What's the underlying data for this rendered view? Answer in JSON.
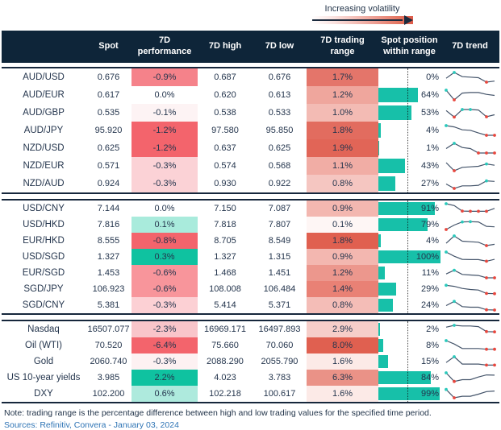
{
  "legend": {
    "label": "Increasing volatility"
  },
  "note": "Note: trading range is the percentage difference between high and low trading values for the specified time period.",
  "sources": "Sources: Refinitiv, Convera - January 03, 2024",
  "colors": {
    "header_bg": "#0E2539",
    "bar_teal": "#17C0A9",
    "positive_teal": "#0FC2A0",
    "heatmap_max_red": "#E05F4E",
    "spark_line": "#44546A",
    "spark_max_dot": "#2BC9BC",
    "spark_min_dot": "#E8473E",
    "text_navy": "#24354D",
    "sources_blue": "#2E74B5",
    "divider": "#16273C"
  },
  "chart_data": {
    "type": "table",
    "title": "",
    "columns": [
      "",
      "Spot",
      "7D performance",
      "7D high",
      "7D low",
      "7D trading range",
      "Spot position within range",
      "7D trend"
    ],
    "groups": [
      {
        "rows": [
          {
            "label": "AUD/USD",
            "spot": "0.676",
            "perf": "-0.9%",
            "perf_bg": "#F5828A",
            "high": "0.687",
            "low": "0.676",
            "range": "1.7%",
            "range_bg": "#E4756A",
            "position": "0%",
            "spark": {
              "points": [
                0.45,
                1.0,
                0.6,
                0.55,
                0.5,
                0.08,
                0.18
              ],
              "max": [
                1
              ],
              "min": [
                5
              ]
            }
          },
          {
            "label": "AUD/EUR",
            "spot": "0.617",
            "perf": "0.0%",
            "perf_bg": "#FFFFFF",
            "high": "0.620",
            "low": "0.613",
            "range": "1.2%",
            "range_bg": "#EFA69D",
            "position": "64%",
            "spark": {
              "points": [
                1.0,
                0.08,
                0.72,
                0.78,
                0.78,
                0.6,
                0.5
              ],
              "max": [
                0
              ],
              "min": [
                1
              ]
            }
          },
          {
            "label": "AUD/GBP",
            "spot": "0.535",
            "perf": "-0.1%",
            "perf_bg": "#FDF3F4",
            "high": "0.538",
            "low": "0.533",
            "range": "1.0%",
            "range_bg": "#F3BBB4",
            "position": "53%",
            "spark": {
              "points": [
                0.75,
                0.12,
                0.85,
                0.85,
                0.8,
                0.15,
                0.35
              ],
              "max": [
                2,
                3
              ],
              "min": [
                1,
                5
              ]
            }
          },
          {
            "label": "AUD/JPY",
            "spot": "95.920",
            "perf": "-1.2%",
            "perf_bg": "#F3646C",
            "high": "97.580",
            "low": "95.850",
            "range": "1.8%",
            "range_bg": "#E26C5F",
            "position": "4%",
            "spark": {
              "points": [
                1.0,
                0.88,
                0.6,
                0.55,
                0.3,
                0.08,
                0.08
              ],
              "max": [
                0
              ],
              "min": [
                5,
                6
              ]
            }
          },
          {
            "label": "NZD/USD",
            "spot": "0.625",
            "perf": "-1.2%",
            "perf_bg": "#F3646C",
            "high": "0.637",
            "low": "0.625",
            "range": "1.9%",
            "range_bg": "#E16557",
            "position": "1%",
            "spark": {
              "points": [
                0.5,
                1.0,
                0.6,
                0.5,
                0.08,
                0.08,
                0.08
              ],
              "max": [
                1
              ],
              "min": [
                4,
                5,
                6
              ]
            }
          },
          {
            "label": "NZD/EUR",
            "spot": "0.571",
            "perf": "-0.3%",
            "perf_bg": "#FBD2D6",
            "high": "0.574",
            "low": "0.568",
            "range": "1.1%",
            "range_bg": "#F1ADA5",
            "position": "43%",
            "spark": {
              "points": [
                0.85,
                0.08,
                0.4,
                0.45,
                0.5,
                0.72,
                0.6
              ],
              "max": [
                5
              ],
              "min": [
                1
              ]
            }
          },
          {
            "label": "NZD/AUD",
            "spot": "0.924",
            "perf": "-0.3%",
            "perf_bg": "#FBD2D6",
            "high": "0.930",
            "low": "0.922",
            "range": "0.8%",
            "range_bg": "#F5C6C1",
            "position": "27%",
            "spark": {
              "points": [
                0.5,
                0.08,
                0.32,
                0.32,
                0.38,
                0.8,
                0.75
              ],
              "max": [
                5
              ],
              "min": [
                1
              ]
            }
          }
        ]
      },
      {
        "rows": [
          {
            "label": "USD/CNY",
            "spot": "7.144",
            "perf": "0.0%",
            "perf_bg": "#FFFFFF",
            "high": "7.150",
            "low": "7.087",
            "range": "0.9%",
            "range_bg": "#F3B7B0",
            "position": "91%",
            "spark": {
              "points": [
                1.0,
                0.82,
                0.3,
                0.28,
                0.28,
                0.28,
                0.55
              ],
              "max": [
                0
              ],
              "min": [
                2,
                3,
                4,
                5
              ]
            }
          },
          {
            "label": "USD/HKD",
            "spot": "7.816",
            "perf": "0.1%",
            "perf_bg": "#A9EBDC",
            "high": "7.818",
            "low": "7.807",
            "range": "0.1%",
            "range_bg": "#FEF6F5",
            "position": "79%",
            "spark": {
              "points": [
                0.08,
                0.5,
                0.8,
                0.82,
                0.8,
                0.38,
                0.33
              ],
              "max": [
                2,
                3
              ],
              "min": [
                0
              ]
            }
          },
          {
            "label": "EUR/HKD",
            "spot": "8.555",
            "perf": "-0.8%",
            "perf_bg": "#F3646C",
            "high": "8.705",
            "low": "8.549",
            "range": "1.8%",
            "range_bg": "#E06050",
            "position": "4%",
            "spark": {
              "points": [
                0.3,
                1.0,
                0.5,
                0.45,
                0.4,
                0.08,
                0.2
              ],
              "max": [
                1
              ],
              "min": [
                5
              ]
            }
          },
          {
            "label": "USD/SGD",
            "spot": "1.327",
            "perf": "0.3%",
            "perf_bg": "#0FC2A0",
            "high": "1.327",
            "low": "1.315",
            "range": "0.9%",
            "range_bg": "#F3B7B0",
            "position": "100%",
            "spark": {
              "points": [
                1.0,
                0.6,
                0.3,
                0.28,
                0.28,
                0.12,
                0.3
              ],
              "max": [
                0
              ],
              "min": [
                5
              ]
            }
          },
          {
            "label": "EUR/SGD",
            "spot": "1.453",
            "perf": "-0.6%",
            "perf_bg": "#F8959B",
            "high": "1.468",
            "low": "1.451",
            "range": "1.2%",
            "range_bg": "#EC978D",
            "position": "11%",
            "spark": {
              "points": [
                0.45,
                0.8,
                0.4,
                0.35,
                0.3,
                0.08,
                0.08
              ],
              "max": [
                1
              ],
              "min": [
                5,
                6
              ]
            }
          },
          {
            "label": "SGD/JPY",
            "spot": "106.923",
            "perf": "-0.6%",
            "perf_bg": "#F8959B",
            "high": "108.008",
            "low": "106.484",
            "range": "1.4%",
            "range_bg": "#E98175",
            "position": "29%",
            "spark": {
              "points": [
                0.9,
                0.8,
                0.6,
                0.5,
                0.45,
                0.12,
                0.1
              ],
              "max": [
                0
              ],
              "min": [
                5,
                6
              ]
            }
          },
          {
            "label": "SGD/CNY",
            "spot": "5.381",
            "perf": "-0.3%",
            "perf_bg": "#FCD0D4",
            "high": "5.414",
            "low": "5.371",
            "range": "0.8%",
            "range_bg": "#F4BDB7",
            "position": "24%",
            "spark": {
              "points": [
                0.5,
                0.9,
                0.4,
                0.35,
                0.35,
                0.1,
                0.08
              ],
              "max": [
                1
              ],
              "min": [
                5,
                6
              ]
            }
          }
        ]
      },
      {
        "rows": [
          {
            "label": "Nasdaq",
            "spot": "16507.077",
            "perf": "-2.3%",
            "perf_bg": "#F9C5CA",
            "high": "16969.171",
            "low": "16497.893",
            "range": "2.9%",
            "range_bg": "#F6CEC9",
            "position": "2%",
            "spark": {
              "points": [
                0.75,
                0.92,
                0.86,
                0.86,
                0.8,
                0.32,
                0.3
              ],
              "max": [
                1
              ],
              "min": [
                5,
                6
              ]
            }
          },
          {
            "label": "Oil (WTI)",
            "spot": "70.520",
            "perf": "-6.4%",
            "perf_bg": "#F3646C",
            "high": "75.660",
            "low": "70.060",
            "range": "8.0%",
            "range_bg": "#E06050",
            "position": "8%",
            "spark": {
              "points": [
                1.0,
                0.68,
                0.25,
                0.25,
                0.25,
                0.18,
                0.18
              ],
              "max": [
                0
              ],
              "min": [
                5,
                6
              ]
            }
          },
          {
            "label": "Gold",
            "spot": "2060.740",
            "perf": "-0.3%",
            "perf_bg": "#FDF1F2",
            "high": "2088.290",
            "low": "2055.790",
            "range": "1.6%",
            "range_bg": "#FCEAE7",
            "position": "15%",
            "spark": {
              "points": [
                0.45,
                1.0,
                0.3,
                0.3,
                0.3,
                0.2,
                0.2
              ],
              "max": [
                1
              ],
              "min": [
                5,
                6
              ]
            }
          },
          {
            "label": "US 10-year yields",
            "spot": "3.985",
            "perf": "2.2%",
            "perf_bg": "#0FC2A0",
            "high": "4.023",
            "low": "3.783",
            "range": "6.3%",
            "range_bg": "#EA9287",
            "position": "84%",
            "spark": {
              "points": [
                1.0,
                0.18,
                0.35,
                0.35,
                0.6,
                0.8,
                0.78
              ],
              "max": [
                0
              ],
              "min": [
                1
              ]
            }
          },
          {
            "label": "DXY",
            "spot": "102.200",
            "perf": "0.6%",
            "perf_bg": "#AEEADD",
            "high": "102.218",
            "low": "100.617",
            "range": "1.6%",
            "range_bg": "#FCEAE7",
            "position": "99%",
            "spark": {
              "points": [
                0.95,
                0.15,
                0.3,
                0.3,
                0.5,
                0.75,
                0.8
              ],
              "max": [
                0
              ],
              "min": [
                1
              ]
            }
          }
        ]
      }
    ]
  }
}
